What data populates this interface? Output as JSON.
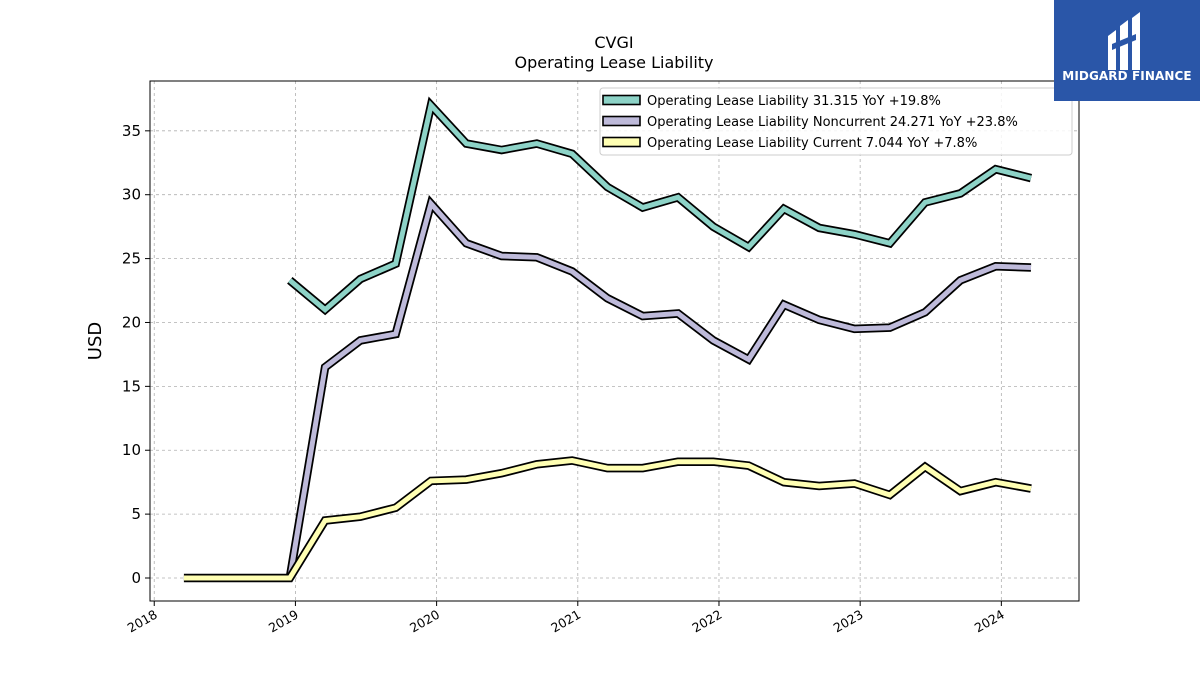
{
  "brand": {
    "name": "MIDGARD FINANCE",
    "bg_color": "#2a56a8"
  },
  "chart_data": {
    "type": "line",
    "title": "CVGI",
    "subtitle": "Operating Lease Liability",
    "ylabel": "USD",
    "xlabel": "",
    "ylim": [
      -1.8,
      38.9
    ],
    "xlim": [
      2017.97,
      2024.55
    ],
    "yticks": [
      0,
      5,
      10,
      15,
      20,
      25,
      30,
      35
    ],
    "xticks": [
      2018,
      2019,
      2020,
      2021,
      2022,
      2023,
      2024
    ],
    "grid": true,
    "legend_position": "top-right",
    "x": [
      2018.21,
      2018.46,
      2018.71,
      2018.96,
      2019.21,
      2019.46,
      2019.71,
      2019.96,
      2020.21,
      2020.46,
      2020.71,
      2020.96,
      2021.21,
      2021.46,
      2021.71,
      2021.96,
      2022.21,
      2022.46,
      2022.71,
      2022.96,
      2023.21,
      2023.46,
      2023.71,
      2023.96,
      2024.21
    ],
    "series": [
      {
        "name": "Operating Lease Liability",
        "legend": "Operating Lease Liability  31.315 YoY +19.8%",
        "color": "#8dd3c7",
        "values": [
          null,
          null,
          null,
          23.3,
          21.0,
          23.4,
          24.6,
          37.0,
          34.0,
          33.5,
          34.0,
          33.2,
          30.6,
          29.0,
          29.8,
          27.5,
          25.9,
          28.9,
          27.4,
          26.9,
          26.2,
          29.4,
          30.1,
          32.0,
          31.3
        ]
      },
      {
        "name": "Operating Lease Liability Noncurrent",
        "legend": "Operating Lease Liability Noncurrent  24.271 YoY +23.8%",
        "color": "#bebada",
        "values": [
          null,
          null,
          null,
          0.0,
          16.5,
          18.6,
          19.1,
          29.3,
          26.2,
          25.2,
          25.1,
          24.0,
          21.9,
          20.5,
          20.7,
          18.6,
          17.1,
          21.4,
          20.2,
          19.5,
          19.6,
          20.8,
          23.3,
          24.4,
          24.3
        ]
      },
      {
        "name": "Operating Lease Liability Current",
        "legend": "Operating Lease Liability Current  7.044 YoY +7.8%",
        "color": "#ffffb3",
        "values": [
          0.0,
          0.0,
          0.0,
          0.0,
          4.5,
          4.8,
          5.5,
          7.6,
          7.7,
          8.2,
          8.9,
          9.2,
          8.6,
          8.6,
          9.1,
          9.1,
          8.8,
          7.5,
          7.2,
          7.4,
          6.5,
          8.7,
          6.8,
          7.5,
          7.0
        ]
      }
    ]
  }
}
